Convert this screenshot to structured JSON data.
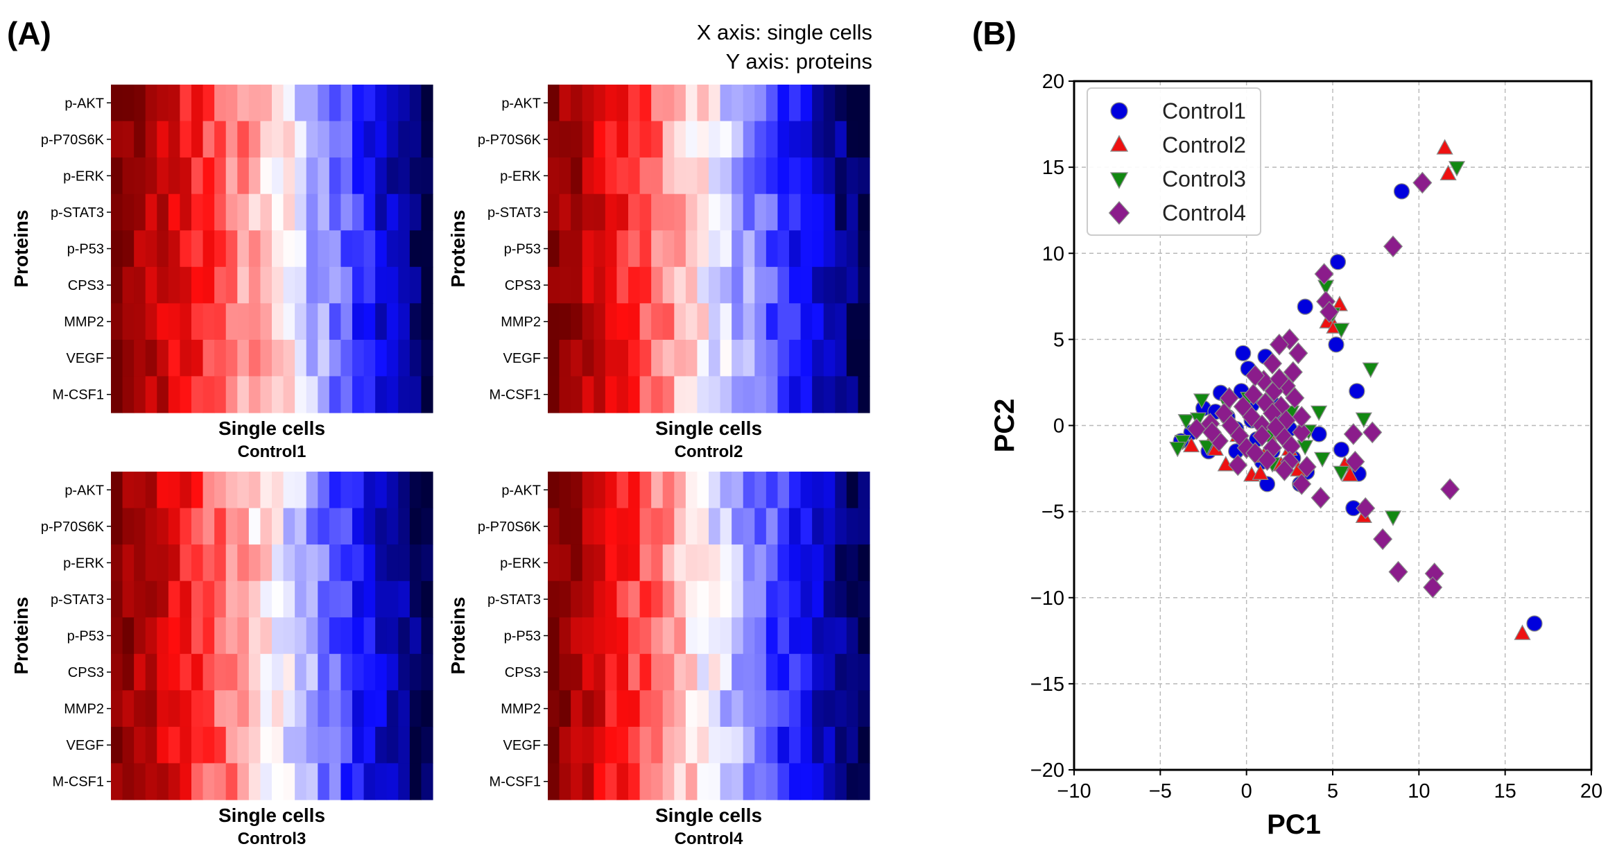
{
  "panel_labels": {
    "a": "(A)",
    "b": "(B)"
  },
  "axis_note": {
    "line1": "X axis: single cells",
    "line2": "Y axis: proteins"
  },
  "heatmap_colors": {
    "dark_red": "#6f0000",
    "red": "#ff0d0d",
    "white": "#ffffff",
    "blue": "#0d0dff",
    "dark_blue": "#00003d"
  },
  "chart_data": [
    {
      "type": "heatmap",
      "title": "Control1",
      "xlabel": "Single cells",
      "ylabel": "Proteins",
      "proteins": [
        "p-AKT",
        "p-P70S6K",
        "p-ERK",
        "p-STAT3",
        "p-P53",
        "CPS3",
        "MMP2",
        "VEGF",
        "M-CSF1"
      ],
      "value_range": [
        -1,
        1
      ],
      "columns": 28,
      "zero_crossing": 0.56
    },
    {
      "type": "heatmap",
      "title": "Control2",
      "xlabel": "Single cells",
      "ylabel": "Proteins",
      "proteins": [
        "p-AKT",
        "p-P70S6K",
        "p-ERK",
        "p-STAT3",
        "p-P53",
        "CPS3",
        "MMP2",
        "VEGF",
        "M-CSF1"
      ],
      "value_range": [
        -1,
        1
      ],
      "columns": 28,
      "zero_crossing": 0.5
    },
    {
      "type": "heatmap",
      "title": "Control3",
      "xlabel": "Single cells",
      "ylabel": "Proteins",
      "proteins": [
        "p-AKT",
        "p-P70S6K",
        "p-ERK",
        "p-STAT3",
        "p-P53",
        "CPS3",
        "MMP2",
        "VEGF",
        "M-CSF1"
      ],
      "value_range": [
        -1,
        1
      ],
      "columns": 28,
      "zero_crossing": 0.51
    },
    {
      "type": "heatmap",
      "title": "Control4",
      "xlabel": "Single cells",
      "ylabel": "Proteins",
      "proteins": [
        "p-AKT",
        "p-P70S6K",
        "p-ERK",
        "p-STAT3",
        "p-P53",
        "CPS3",
        "MMP2",
        "VEGF",
        "M-CSF1"
      ],
      "value_range": [
        -1,
        1
      ],
      "columns": 28,
      "zero_crossing": 0.49
    },
    {
      "type": "scatter",
      "xlabel": "PC1",
      "ylabel": "PC2",
      "xlim": [
        -10,
        20
      ],
      "ylim": [
        -20,
        20
      ],
      "xticks": [
        -10,
        -5,
        0,
        5,
        10,
        15,
        20
      ],
      "yticks": [
        -20,
        -15,
        -10,
        -5,
        0,
        5,
        10,
        15,
        20
      ],
      "xtick_labels": [
        "−10",
        "−5",
        "0",
        "5",
        "10",
        "15",
        "20"
      ],
      "ytick_labels": [
        "−20",
        "−15",
        "−10",
        "−5",
        "0",
        "5",
        "10",
        "15",
        "20"
      ],
      "grid": true,
      "legend": "top-left",
      "series": [
        {
          "name": "Control1",
          "marker": "circle",
          "color": "#0000dd",
          "points": [
            [
              9,
              13.6
            ],
            [
              5.3,
              9.5
            ],
            [
              5.2,
              4.7
            ],
            [
              6.4,
              2
            ],
            [
              3.4,
              6.9
            ],
            [
              -0.2,
              4.2
            ],
            [
              0.1,
              3.3
            ],
            [
              1.1,
              4
            ],
            [
              -1.5,
              1.9
            ],
            [
              -0.3,
              2
            ],
            [
              -2.5,
              1
            ],
            [
              -1.8,
              0.8
            ],
            [
              -3.2,
              -0.4
            ],
            [
              -3.8,
              -0.9
            ],
            [
              -2.2,
              -1.5
            ],
            [
              -0.6,
              -1.5
            ],
            [
              0.9,
              -2.1
            ],
            [
              1.2,
              -3.4
            ],
            [
              3.1,
              -3.4
            ],
            [
              4.2,
              -0.5
            ],
            [
              5.5,
              -1.4
            ],
            [
              6.5,
              -2.8
            ],
            [
              6.2,
              -4.8
            ],
            [
              16.7,
              -11.5
            ],
            [
              2.5,
              -0.2
            ],
            [
              1.7,
              0.5
            ],
            [
              1.6,
              1.2
            ],
            [
              0.3,
              1.2
            ],
            [
              -1.1,
              0.5
            ],
            [
              -0.6,
              -0.2
            ],
            [
              0.6,
              -0.8
            ],
            [
              2.7,
              -1.9
            ],
            [
              3.5,
              -2.7
            ],
            [
              1.5,
              -1.5
            ],
            [
              0.3,
              0.3
            ]
          ]
        },
        {
          "name": "Control2",
          "marker": "triangle-up",
          "color": "#ee1111",
          "points": [
            [
              11.5,
              16.1
            ],
            [
              11.7,
              14.6
            ],
            [
              4.7,
              6
            ],
            [
              5.4,
              7
            ],
            [
              5.1,
              5.7
            ],
            [
              -1.8,
              -1.4
            ],
            [
              -1.2,
              -2.3
            ],
            [
              0.3,
              -2.9
            ],
            [
              0.8,
              -2.8
            ],
            [
              5.7,
              -2.3
            ],
            [
              6,
              -2.9
            ],
            [
              6.8,
              -5.3
            ],
            [
              16,
              -12.1
            ],
            [
              -3.2,
              -1.2
            ],
            [
              -2,
              -0.8
            ],
            [
              1,
              -1.8
            ],
            [
              2,
              -2.3
            ],
            [
              3,
              -2.6
            ],
            [
              -0.5,
              -0.6
            ],
            [
              1.3,
              -0.6
            ],
            [
              2.5,
              -1.4
            ]
          ]
        },
        {
          "name": "Control3",
          "marker": "triangle-down",
          "color": "#118811",
          "points": [
            [
              12.2,
              15
            ],
            [
              4.6,
              8.1
            ],
            [
              5,
              6.5
            ],
            [
              5.5,
              5.6
            ],
            [
              7.2,
              3.3
            ],
            [
              6.8,
              0.4
            ],
            [
              4.2,
              0.8
            ],
            [
              2.6,
              0.8
            ],
            [
              -2.6,
              1.5
            ],
            [
              -3.5,
              0.3
            ],
            [
              -2.8,
              0.4
            ],
            [
              -3.7,
              -0.9
            ],
            [
              -4,
              -1.3
            ],
            [
              -2.3,
              -1.2
            ],
            [
              1.3,
              -0.6
            ],
            [
              3.4,
              -1.2
            ],
            [
              4.4,
              -1.9
            ],
            [
              5.5,
              -2.7
            ],
            [
              8.5,
              -5.3
            ],
            [
              -1.1,
              1.2
            ],
            [
              0.1,
              1.6
            ],
            [
              1.5,
              -2.2
            ],
            [
              3.6,
              -0.3
            ]
          ]
        },
        {
          "name": "Control4",
          "marker": "diamond",
          "color": "#8b1c8b",
          "points": [
            [
              10.2,
              14.1
            ],
            [
              8.5,
              10.4
            ],
            [
              4.5,
              8.8
            ],
            [
              4.6,
              7.2
            ],
            [
              4.8,
              6.6
            ],
            [
              2.5,
              5
            ],
            [
              1.9,
              4.7
            ],
            [
              3,
              4.2
            ],
            [
              1.5,
              3.6
            ],
            [
              2.7,
              3.1
            ],
            [
              1,
              2.6
            ],
            [
              2.3,
              2.3
            ],
            [
              0.4,
              1.8
            ],
            [
              1.6,
              2
            ],
            [
              2.8,
              1.6
            ],
            [
              -0.2,
              1.1
            ],
            [
              1.1,
              1.3
            ],
            [
              2,
              1.1
            ],
            [
              -1.3,
              0.7
            ],
            [
              0.3,
              0.5
            ],
            [
              1.5,
              0.7
            ],
            [
              -2.1,
              0.1
            ],
            [
              -0.9,
              0
            ],
            [
              0.9,
              0
            ],
            [
              2.3,
              0.3
            ],
            [
              -0.4,
              -0.6
            ],
            [
              0.9,
              -0.6
            ],
            [
              2.1,
              -0.6
            ],
            [
              3.2,
              -0.4
            ],
            [
              -1.6,
              -0.9
            ],
            [
              0,
              -1.3
            ],
            [
              1.5,
              -1.3
            ],
            [
              2.6,
              -1.2
            ],
            [
              1.2,
              -2
            ],
            [
              2.5,
              -2.1
            ],
            [
              3.5,
              -2.4
            ],
            [
              2.2,
              -2.6
            ],
            [
              3.2,
              -3.4
            ],
            [
              4.3,
              -4.2
            ],
            [
              6.2,
              -0.5
            ],
            [
              6.3,
              -2.1
            ],
            [
              7.3,
              -0.4
            ],
            [
              6.9,
              -4.8
            ],
            [
              7.9,
              -6.6
            ],
            [
              8.8,
              -8.5
            ],
            [
              10.9,
              -8.6
            ],
            [
              10.8,
              -9.4
            ],
            [
              11.8,
              -3.7
            ],
            [
              -0.5,
              -2.3
            ],
            [
              0.5,
              -1.6
            ],
            [
              1.7,
              -0.1
            ],
            [
              3.2,
              0.5
            ],
            [
              -1,
              1.6
            ],
            [
              0.5,
              2.9
            ],
            [
              1.9,
              2.7
            ],
            [
              -2,
              -0.4
            ],
            [
              -2.9,
              -0.2
            ]
          ]
        }
      ]
    }
  ]
}
